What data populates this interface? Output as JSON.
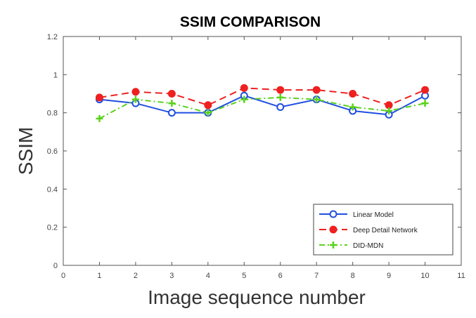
{
  "chart_data": {
    "type": "line",
    "title": "SSIM COMPARISON",
    "xlabel": "Image sequence number",
    "ylabel": "SSIM",
    "xlim": [
      0,
      11
    ],
    "ylim": [
      0,
      1.2
    ],
    "x_ticks": [
      0,
      1,
      2,
      3,
      4,
      5,
      6,
      7,
      8,
      9,
      10,
      11
    ],
    "y_ticks": [
      0,
      0.2,
      0.4,
      0.6,
      0.8,
      1,
      1.2
    ],
    "grid": false,
    "legend_position": "bottom-right",
    "x": [
      1,
      2,
      3,
      4,
      5,
      6,
      7,
      8,
      9,
      10
    ],
    "series": [
      {
        "name": "Linear Model",
        "color": "#1f4fe0",
        "line_style": "solid",
        "marker": "circle",
        "values": [
          0.87,
          0.85,
          0.8,
          0.8,
          0.89,
          0.83,
          0.87,
          0.81,
          0.79,
          0.89
        ]
      },
      {
        "name": "Deep Detail Network",
        "color": "#ee2020",
        "line_style": "dashed",
        "marker": "filled-circle",
        "values": [
          0.88,
          0.91,
          0.9,
          0.84,
          0.93,
          0.92,
          0.92,
          0.9,
          0.84,
          0.92
        ]
      },
      {
        "name": "DID-MDN",
        "color": "#5ad21c",
        "line_style": "dash-dot",
        "marker": "plus",
        "values": [
          0.77,
          0.87,
          0.85,
          0.8,
          0.87,
          0.88,
          0.87,
          0.83,
          0.81,
          0.85
        ]
      }
    ]
  }
}
